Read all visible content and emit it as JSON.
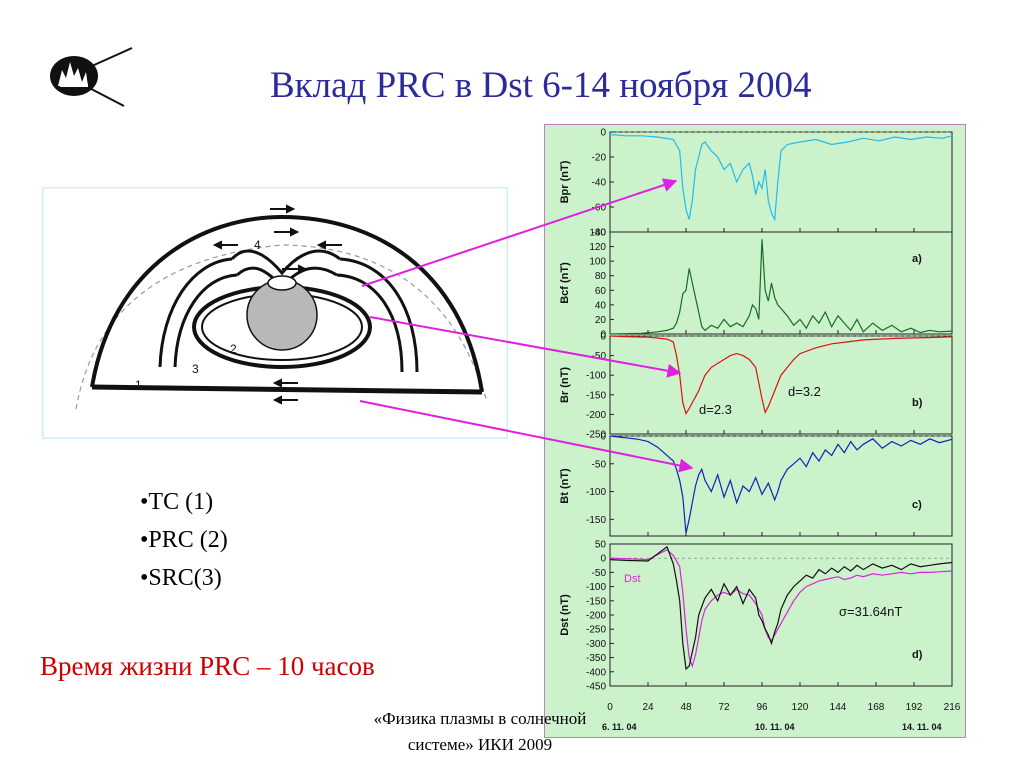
{
  "slide": {
    "title": "Вклад PRC в Dst 6-14 ноября 2004",
    "bullets": [
      "•TC  (1)",
      "•PRC (2)",
      "•SRC(3)"
    ],
    "note": "Время жизни PRC – 10 часов",
    "footer": "«Физика плазмы в солнечной системе» ИКИ 2009",
    "colors": {
      "title": "#2b2b9c",
      "note": "#cc0000",
      "arrow": "#e020e0",
      "chart_bg": "#ccf2cc"
    }
  },
  "diagram": {
    "region_labels": [
      "1",
      "2",
      "3",
      "4"
    ],
    "icons": [
      "logo-icon",
      "current-arrow-icon"
    ]
  },
  "chart_data": {
    "type": "line",
    "x_ticks": [
      "0",
      "24",
      "48",
      "72",
      "96",
      "120",
      "144",
      "168",
      "192",
      "216"
    ],
    "xlim": [
      0,
      216
    ],
    "date_labels": [
      "6. 11. 04",
      "10. 11. 04",
      "14. 11. 04"
    ],
    "panels": [
      {
        "ylabel": "Bpr  (nT)",
        "tag": "",
        "ylim": [
          -80,
          0
        ],
        "y_ticks": [
          "0",
          "-20",
          "-40",
          "-60",
          "-80"
        ],
        "series": [
          {
            "color": "#22bbee",
            "x": [
              0,
              10,
              20,
              30,
              40,
              44,
              46,
              48,
              50,
              52,
              54,
              56,
              58,
              60,
              64,
              68,
              72,
              76,
              80,
              84,
              88,
              90,
              92,
              94,
              96,
              98,
              100,
              102,
              104,
              106,
              108,
              112,
              120,
              130,
              140,
              150,
              160,
              170,
              180,
              190,
              200,
              210,
              216
            ],
            "y": [
              -2,
              -3,
              -3,
              -4,
              -6,
              -15,
              -45,
              -62,
              -70,
              -55,
              -30,
              -20,
              -10,
              -8,
              -15,
              -20,
              -30,
              -25,
              -40,
              -30,
              -25,
              -35,
              -50,
              -40,
              -45,
              -30,
              -55,
              -65,
              -70,
              -40,
              -15,
              -10,
              -8,
              -6,
              -10,
              -8,
              -5,
              -7,
              -4,
              -6,
              -4,
              -5,
              -3
            ]
          }
        ]
      },
      {
        "ylabel": "Bcf (nT)",
        "tag": "a)",
        "ylim": [
          0,
          140
        ],
        "y_ticks": [
          "140",
          "120",
          "100",
          "80",
          "60",
          "40",
          "20",
          "0"
        ],
        "series": [
          {
            "color": "#1a6b2a",
            "x": [
              0,
              20,
              30,
              36,
              40,
              42,
              44,
              46,
              48,
              50,
              52,
              54,
              56,
              58,
              60,
              64,
              68,
              72,
              76,
              80,
              84,
              88,
              90,
              92,
              94,
              96,
              98,
              100,
              102,
              104,
              106,
              108,
              112,
              116,
              120,
              124,
              128,
              132,
              136,
              140,
              144,
              148,
              152,
              156,
              160,
              166,
              172,
              178,
              184,
              190,
              196,
              202,
              208,
              216
            ],
            "y": [
              0,
              1,
              3,
              5,
              8,
              15,
              30,
              55,
              60,
              90,
              70,
              50,
              30,
              10,
              5,
              12,
              8,
              20,
              10,
              15,
              10,
              25,
              40,
              35,
              20,
              130,
              60,
              45,
              70,
              50,
              40,
              35,
              25,
              12,
              20,
              8,
              25,
              15,
              30,
              10,
              25,
              15,
              5,
              20,
              3,
              15,
              5,
              12,
              3,
              8,
              2,
              5,
              3,
              4
            ]
          }
        ]
      },
      {
        "ylabel": "Br (nT)",
        "tag": "b)",
        "ylim": [
          -250,
          0
        ],
        "y_ticks": [
          "0",
          "-50",
          "-100",
          "-150",
          "-200",
          "-250"
        ],
        "annotations": [
          "d=2.3",
          "d=3.2"
        ],
        "series": [
          {
            "color": "#dd1111",
            "x": [
              0,
              12,
              24,
              30,
              36,
              40,
              42,
              44,
              46,
              48,
              50,
              52,
              54,
              56,
              58,
              60,
              64,
              68,
              72,
              76,
              80,
              84,
              88,
              92,
              94,
              96,
              98,
              100,
              102,
              104,
              106,
              108,
              112,
              116,
              120,
              130,
              140,
              150,
              160,
              170,
              180,
              190,
              200,
              210,
              216
            ],
            "y": [
              0,
              -2,
              -3,
              -5,
              -8,
              -15,
              -50,
              -100,
              -170,
              -198,
              -185,
              -170,
              -155,
              -140,
              -120,
              -100,
              -80,
              -70,
              -60,
              -50,
              -45,
              -50,
              -60,
              -80,
              -120,
              -160,
              -195,
              -180,
              -160,
              -140,
              -120,
              -100,
              -80,
              -60,
              -45,
              -30,
              -20,
              -15,
              -10,
              -8,
              -6,
              -5,
              -4,
              -3,
              -2
            ]
          }
        ]
      },
      {
        "ylabel": "Bt (nT)",
        "tag": "c)",
        "ylim": [
          -180,
          0
        ],
        "y_ticks": [
          "0",
          "-50",
          "-100",
          "-150"
        ],
        "series": [
          {
            "color": "#1122bb",
            "x": [
              0,
              6,
              12,
              18,
              24,
              30,
              36,
              40,
              42,
              44,
              46,
              48,
              50,
              52,
              54,
              56,
              58,
              60,
              64,
              68,
              72,
              76,
              80,
              84,
              88,
              92,
              96,
              100,
              104,
              106,
              108,
              112,
              116,
              120,
              124,
              128,
              132,
              136,
              140,
              144,
              148,
              152,
              156,
              160,
              166,
              172,
              178,
              184,
              190,
              196,
              202,
              208,
              216
            ],
            "y": [
              0,
              -2,
              -4,
              -6,
              -10,
              -20,
              -35,
              -45,
              -60,
              -80,
              -110,
              -175,
              -150,
              -120,
              -90,
              -70,
              -60,
              -80,
              -100,
              -70,
              -110,
              -80,
              -120,
              -90,
              -100,
              -75,
              -105,
              -85,
              -115,
              -100,
              -80,
              -60,
              -50,
              -40,
              -55,
              -30,
              -45,
              -25,
              -35,
              -15,
              -30,
              -10,
              -25,
              -15,
              -5,
              -22,
              -10,
              -18,
              -8,
              -15,
              -5,
              -12,
              -6
            ]
          }
        ]
      },
      {
        "ylabel": "Dst  (nT)",
        "tag": "d)",
        "ylim": [
          -450,
          50
        ],
        "y_ticks": [
          "50",
          "0",
          "-50",
          "-100",
          "-150",
          "-200",
          "-250",
          "-300",
          "-350",
          "-400",
          "-450"
        ],
        "annotations": [
          "σ=31.64nT"
        ],
        "series": [
          {
            "name": "Dst",
            "color": "#dd22dd",
            "x": [
              0,
              12,
              24,
              36,
              40,
              44,
              46,
              48,
              50,
              52,
              54,
              56,
              58,
              60,
              64,
              68,
              72,
              76,
              80,
              84,
              88,
              92,
              96,
              98,
              100,
              102,
              104,
              106,
              108,
              112,
              116,
              120,
              124,
              128,
              132,
              136,
              140,
              144,
              148,
              152,
              156,
              160,
              166,
              172,
              178,
              184,
              190,
              196,
              202,
              208,
              216
            ],
            "y": [
              0,
              -2,
              -5,
              30,
              10,
              -30,
              -120,
              -250,
              -350,
              -380,
              -340,
              -280,
              -220,
              -180,
              -150,
              -130,
              -120,
              -130,
              -110,
              -125,
              -130,
              -160,
              -200,
              -250,
              -280,
              -290,
              -270,
              -250,
              -230,
              -190,
              -150,
              -120,
              -100,
              -90,
              -80,
              -75,
              -70,
              -65,
              -75,
              -70,
              -60,
              -65,
              -55,
              -60,
              -55,
              -50,
              -55,
              -50,
              -50,
              -48,
              -45
            ]
          },
          {
            "color": "#111111",
            "x": [
              0,
              12,
              24,
              36,
              40,
              42,
              44,
              46,
              48,
              50,
              52,
              54,
              56,
              58,
              60,
              64,
              68,
              72,
              76,
              80,
              84,
              88,
              92,
              94,
              96,
              98,
              100,
              102,
              104,
              106,
              108,
              112,
              116,
              120,
              124,
              128,
              132,
              136,
              140,
              144,
              148,
              152,
              156,
              160,
              166,
              172,
              178,
              184,
              190,
              196,
              202,
              208,
              216
            ],
            "y": [
              -5,
              -8,
              -10,
              40,
              -20,
              -80,
              -150,
              -300,
              -390,
              -380,
              -330,
              -280,
              -200,
              -170,
              -140,
              -110,
              -150,
              -90,
              -130,
              -100,
              -160,
              -110,
              -140,
              -200,
              -220,
              -250,
              -270,
              -300,
              -260,
              -230,
              -180,
              -130,
              -100,
              -80,
              -60,
              -70,
              -40,
              -55,
              -35,
              -50,
              -30,
              -45,
              -25,
              -40,
              -20,
              -35,
              -25,
              -40,
              -20,
              -30,
              -25,
              -20,
              -15
            ]
          }
        ]
      }
    ]
  }
}
